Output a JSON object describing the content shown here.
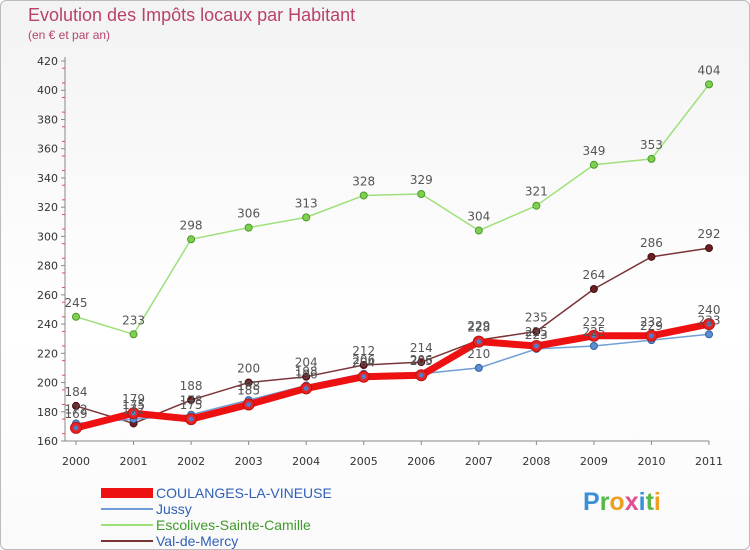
{
  "title": "Evolution des Impôts locaux par Habitant",
  "subtitle": "(en € et par an)",
  "logo": "Proxiti",
  "chart_data": {
    "type": "line",
    "title": "Evolution des Impôts locaux par Habitant",
    "subtitle": "(en € et par an)",
    "xlabel": "",
    "ylabel": "",
    "x": [
      2000,
      2001,
      2002,
      2003,
      2004,
      2005,
      2006,
      2007,
      2008,
      2009,
      2010,
      2011
    ],
    "ylim": [
      160,
      420
    ],
    "yticks": [
      160,
      180,
      200,
      220,
      240,
      260,
      280,
      300,
      320,
      340,
      360,
      380,
      400,
      420
    ],
    "grid": false,
    "legend_position": "bottom-left",
    "series": [
      {
        "name": "COULANGES-LA-VINEUSE",
        "color": "#ee1111",
        "values": [
          169,
          179,
          175,
          185,
          196,
          204,
          205,
          228,
          225,
          232,
          232,
          240
        ],
        "labels": [
          "169",
          "179",
          "175",
          "185",
          "196",
          "204",
          "205",
          "228",
          "225",
          "232",
          "232",
          "240"
        ]
      },
      {
        "name": "Jussy",
        "color": "#6f9fd6",
        "values": [
          172,
          175,
          178,
          188,
          198,
          206,
          206,
          210,
          223,
          225,
          229,
          233
        ],
        "labels": [
          "172",
          "175",
          "178",
          "188",
          "198",
          "206",
          "206",
          "210",
          "223",
          "225",
          "229",
          "233"
        ]
      },
      {
        "name": "Escolives-Sainte-Camille",
        "color": "#9ee07a",
        "values": [
          245,
          233,
          298,
          306,
          313,
          328,
          329,
          304,
          321,
          349,
          353,
          404
        ],
        "labels": [
          "245",
          "233",
          "298",
          "306",
          "313",
          "328",
          "329",
          "304",
          "321",
          "349",
          "353",
          "404"
        ]
      },
      {
        "name": "Val-de-Mercy",
        "color": "#7a3436",
        "values": [
          184,
          172,
          188,
          200,
          204,
          212,
          214,
          229,
          235,
          264,
          286,
          292
        ],
        "labels": [
          "184",
          "172",
          "188",
          "200",
          "204",
          "212",
          "214",
          "229",
          "235",
          "264",
          "286",
          "292"
        ]
      }
    ]
  }
}
